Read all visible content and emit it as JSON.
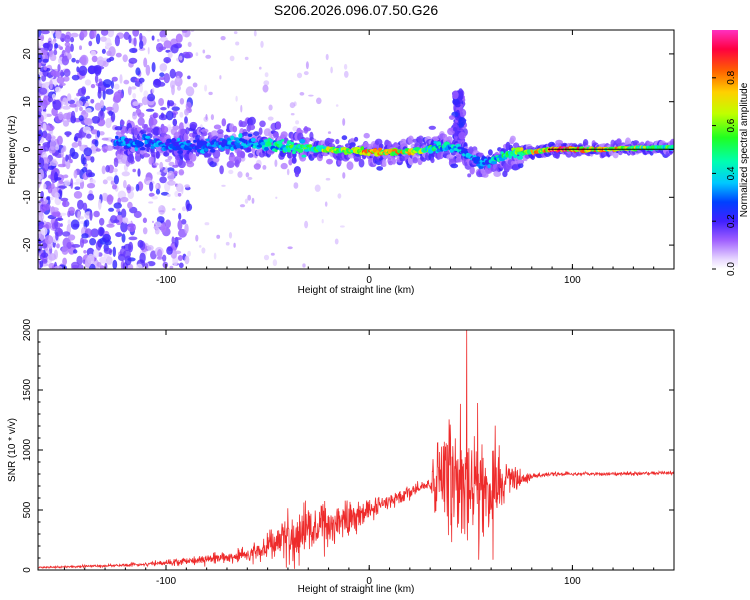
{
  "title": "S206.2026.096.07.50.G26",
  "colors": {
    "spectrogram_base": "#7c1cf0",
    "signal_line": "#ee2b2b",
    "axis": "#000000"
  },
  "chart_data": [
    {
      "type": "heatmap",
      "title": "S206.2026.096.07.50.G26",
      "xlabel": "Height of straight line (km)",
      "ylabel": "Frequency (Hz)",
      "xlim": [
        -163,
        150
      ],
      "ylim": [
        -25,
        25
      ],
      "xticks": [
        -100,
        0,
        100
      ],
      "yticks": [
        -20,
        -10,
        0,
        10,
        20
      ],
      "colorbar": {
        "label": "Normalized spectral amplitude",
        "range": [
          0,
          1
        ],
        "ticks": [
          0.0,
          0.2,
          0.4,
          0.6,
          0.8
        ],
        "colormap": "rainbow"
      },
      "ridge": {
        "description_points_x": [
          -115,
          -90,
          -60,
          -40,
          -20,
          0,
          20,
          35,
          45,
          55,
          70,
          90,
          110,
          150
        ],
        "center_frequency_hz": [
          1.5,
          0.5,
          1.5,
          0.5,
          0.0,
          -0.5,
          -0.5,
          0.5,
          0.0,
          -3.0,
          -1.0,
          0.0,
          0.0,
          0.5
        ],
        "peak_amplitude": [
          0.35,
          0.35,
          0.4,
          0.55,
          0.7,
          0.85,
          0.8,
          0.5,
          0.4,
          0.35,
          0.6,
          0.95,
          0.9,
          0.55
        ]
      },
      "burst": {
        "x_km": 44,
        "max_frequency_hz": 12
      }
    },
    {
      "type": "line",
      "xlabel": "Height of straight line (km)",
      "ylabel": "SNR (10 * v/v)",
      "xlim": [
        -163,
        150
      ],
      "ylim": [
        0,
        2000
      ],
      "xticks": [
        -100,
        0,
        100
      ],
      "yticks": [
        0,
        500,
        1000,
        1500,
        2000
      ],
      "series": [
        {
          "name": "SNR",
          "envelope_x_km": [
            -163,
            -120,
            -100,
            -80,
            -60,
            -50,
            -40,
            -30,
            -20,
            -10,
            0,
            10,
            20,
            30,
            32,
            40,
            45,
            50,
            60,
            70,
            80,
            90,
            100,
            120,
            150
          ],
          "mean_snr": [
            20,
            40,
            60,
            90,
            130,
            200,
            280,
            330,
            380,
            430,
            500,
            580,
            650,
            720,
            720,
            750,
            760,
            740,
            700,
            720,
            780,
            800,
            800,
            800,
            810
          ],
          "noise_amplitude": [
            8,
            15,
            30,
            50,
            80,
            150,
            250,
            280,
            250,
            200,
            120,
            80,
            60,
            60,
            300,
            650,
            800,
            650,
            500,
            200,
            25,
            20,
            20,
            20,
            20
          ],
          "peak": {
            "x_km": 48,
            "value": 2000
          }
        }
      ]
    }
  ]
}
